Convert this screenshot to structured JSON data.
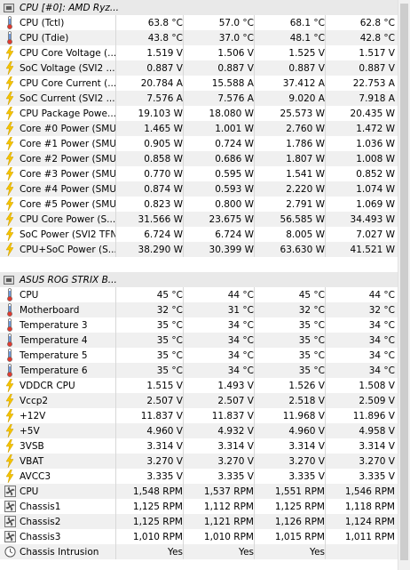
{
  "groups": [
    {
      "title": "CPU [#0]: AMD Ryz...",
      "rows": [
        {
          "icon": "thermometer-icon",
          "label": "CPU (Tctl)",
          "values": [
            "63.8 °C",
            "57.0 °C",
            "68.1 °C",
            "62.8 °C"
          ]
        },
        {
          "icon": "thermometer-icon",
          "label": "CPU (Tdie)",
          "values": [
            "43.8 °C",
            "37.0 °C",
            "48.1 °C",
            "42.8 °C"
          ]
        },
        {
          "icon": "lightning-icon",
          "label": "CPU Core Voltage (...",
          "values": [
            "1.519 V",
            "1.506 V",
            "1.525 V",
            "1.517 V"
          ]
        },
        {
          "icon": "lightning-icon",
          "label": "SoC Voltage (SVI2 ...",
          "values": [
            "0.887 V",
            "0.887 V",
            "0.887 V",
            "0.887 V"
          ]
        },
        {
          "icon": "lightning-icon",
          "label": "CPU Core Current (...",
          "values": [
            "20.784 A",
            "15.588 A",
            "37.412 A",
            "22.753 A"
          ]
        },
        {
          "icon": "lightning-icon",
          "label": "SoC Current (SVI2 ...",
          "values": [
            "7.576 A",
            "7.576 A",
            "9.020 A",
            "7.918 A"
          ]
        },
        {
          "icon": "lightning-icon",
          "label": "CPU Package Powe...",
          "values": [
            "19.103 W",
            "18.080 W",
            "25.573 W",
            "20.435 W"
          ]
        },
        {
          "icon": "lightning-icon",
          "label": "Core #0 Power (SMU)",
          "values": [
            "1.465 W",
            "1.001 W",
            "2.760 W",
            "1.472 W"
          ]
        },
        {
          "icon": "lightning-icon",
          "label": "Core #1 Power (SMU)",
          "values": [
            "0.905 W",
            "0.724 W",
            "1.786 W",
            "1.036 W"
          ]
        },
        {
          "icon": "lightning-icon",
          "label": "Core #2 Power (SMU)",
          "values": [
            "0.858 W",
            "0.686 W",
            "1.807 W",
            "1.008 W"
          ]
        },
        {
          "icon": "lightning-icon",
          "label": "Core #3 Power (SMU)",
          "values": [
            "0.770 W",
            "0.595 W",
            "1.541 W",
            "0.852 W"
          ]
        },
        {
          "icon": "lightning-icon",
          "label": "Core #4 Power (SMU)",
          "values": [
            "0.874 W",
            "0.593 W",
            "2.220 W",
            "1.074 W"
          ]
        },
        {
          "icon": "lightning-icon",
          "label": "Core #5 Power (SMU)",
          "values": [
            "0.823 W",
            "0.800 W",
            "2.791 W",
            "1.069 W"
          ]
        },
        {
          "icon": "lightning-icon",
          "label": "CPU Core Power (S...",
          "values": [
            "31.566 W",
            "23.675 W",
            "56.585 W",
            "34.493 W"
          ]
        },
        {
          "icon": "lightning-icon",
          "label": "SoC Power (SVI2 TFN)",
          "values": [
            "6.724 W",
            "6.724 W",
            "8.005 W",
            "7.027 W"
          ]
        },
        {
          "icon": "lightning-icon",
          "label": "CPU+SoC Power (S...",
          "values": [
            "38.290 W",
            "30.399 W",
            "63.630 W",
            "41.521 W"
          ]
        }
      ]
    },
    {
      "title": "ASUS ROG STRIX B...",
      "rows": [
        {
          "icon": "thermometer-icon",
          "label": "CPU",
          "values": [
            "45 °C",
            "44 °C",
            "45 °C",
            "44 °C"
          ]
        },
        {
          "icon": "thermometer-icon",
          "label": "Motherboard",
          "values": [
            "32 °C",
            "31 °C",
            "32 °C",
            "32 °C"
          ]
        },
        {
          "icon": "thermometer-icon",
          "label": "Temperature 3",
          "values": [
            "35 °C",
            "34 °C",
            "35 °C",
            "34 °C"
          ]
        },
        {
          "icon": "thermometer-icon",
          "label": "Temperature 4",
          "values": [
            "35 °C",
            "34 °C",
            "35 °C",
            "34 °C"
          ]
        },
        {
          "icon": "thermometer-icon",
          "label": "Temperature 5",
          "values": [
            "35 °C",
            "34 °C",
            "35 °C",
            "34 °C"
          ]
        },
        {
          "icon": "thermometer-icon",
          "label": "Temperature 6",
          "values": [
            "35 °C",
            "34 °C",
            "35 °C",
            "34 °C"
          ]
        },
        {
          "icon": "lightning-icon",
          "label": "VDDCR CPU",
          "values": [
            "1.515 V",
            "1.493 V",
            "1.526 V",
            "1.508 V"
          ]
        },
        {
          "icon": "lightning-icon",
          "label": "Vccp2",
          "values": [
            "2.507 V",
            "2.507 V",
            "2.518 V",
            "2.509 V"
          ]
        },
        {
          "icon": "lightning-icon",
          "label": "+12V",
          "values": [
            "11.837 V",
            "11.837 V",
            "11.968 V",
            "11.896 V"
          ]
        },
        {
          "icon": "lightning-icon",
          "label": "+5V",
          "values": [
            "4.960 V",
            "4.932 V",
            "4.960 V",
            "4.958 V"
          ]
        },
        {
          "icon": "lightning-icon",
          "label": "3VSB",
          "values": [
            "3.314 V",
            "3.314 V",
            "3.314 V",
            "3.314 V"
          ]
        },
        {
          "icon": "lightning-icon",
          "label": "VBAT",
          "values": [
            "3.270 V",
            "3.270 V",
            "3.270 V",
            "3.270 V"
          ]
        },
        {
          "icon": "lightning-icon",
          "label": "AVCC3",
          "values": [
            "3.335 V",
            "3.335 V",
            "3.335 V",
            "3.335 V"
          ]
        },
        {
          "icon": "fan-icon",
          "label": "CPU",
          "values": [
            "1,548 RPM",
            "1,537 RPM",
            "1,551 RPM",
            "1,546 RPM"
          ]
        },
        {
          "icon": "fan-icon",
          "label": "Chassis1",
          "values": [
            "1,125 RPM",
            "1,112 RPM",
            "1,125 RPM",
            "1,118 RPM"
          ]
        },
        {
          "icon": "fan-icon",
          "label": "Chassis2",
          "values": [
            "1,125 RPM",
            "1,121 RPM",
            "1,126 RPM",
            "1,124 RPM"
          ]
        },
        {
          "icon": "fan-icon",
          "label": "Chassis3",
          "values": [
            "1,010 RPM",
            "1,010 RPM",
            "1,015 RPM",
            "1,011 RPM"
          ]
        },
        {
          "icon": "clock-icon",
          "label": "Chassis Intrusion",
          "values": [
            "Yes",
            "Yes",
            "Yes",
            ""
          ]
        }
      ]
    }
  ],
  "colors": {
    "row_shade": "#f0f0f0",
    "group_header": "#e9e9e9",
    "lightning": "#f5c400",
    "thermo_blue": "#2f6fd1",
    "thermo_red": "#e03a2f",
    "fan": "#5a5a5a"
  }
}
